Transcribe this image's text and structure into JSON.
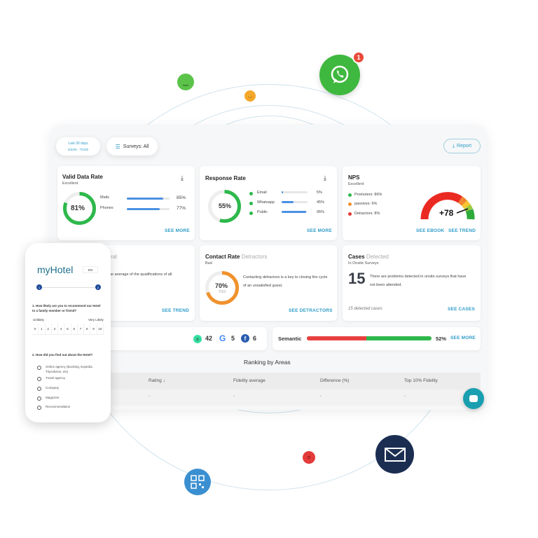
{
  "filters": {
    "date_label": "Last 30 days",
    "date_range": "6/2/25 - 7/2/25",
    "surveys": "Surveys: All",
    "report": "Report"
  },
  "valid_data_rate": {
    "title": "Valid Data Rate",
    "subtitle": "Excellent",
    "value": "81%",
    "percent": 81,
    "rows": [
      {
        "label": "Mails",
        "value": "85%",
        "percent": 85
      },
      {
        "label": "Phones",
        "value": "77%",
        "percent": 77
      }
    ],
    "link": "SEE MORE"
  },
  "response_rate": {
    "title": "Response Rate",
    "value": "55%",
    "percent": 55,
    "rows": [
      {
        "label": "Email",
        "value": "5%",
        "percent": 5
      },
      {
        "label": "Whatsapp",
        "value": "45%",
        "percent": 45
      },
      {
        "label": "Public",
        "value": "95%",
        "percent": 95
      }
    ],
    "link": "SEE MORE"
  },
  "nps": {
    "title": "NPS",
    "subtitle": "Excellent",
    "items": [
      {
        "label": "Promoters: 86%",
        "color": "#2eb84b"
      },
      {
        "label": "passives: 6%",
        "color": "#f0922e"
      },
      {
        "label": "Detractors: 8%",
        "color": "#e23a3a"
      }
    ],
    "score": "+78",
    "link_ebook": "SEE EBOOK",
    "link_trend": "SEE TREND"
  },
  "general": {
    "title_fragment": "ral",
    "text_fragment": "ne average of the qualifications of all",
    "link": "SEE TREND"
  },
  "contact_rate": {
    "title": "Contact Rate",
    "title_muted": "Detractors",
    "subtitle": "Bad",
    "value": "70%",
    "fraction": "7/10",
    "percent": 70,
    "text": "Contacting detractors is a key to closing the cycle of an unsatisfied guest.",
    "link": "SEE DETRACTORS"
  },
  "cases": {
    "title": "Cases",
    "title_muted": "Detected",
    "subtitle": "In Onsite Surveys",
    "count": "15",
    "text": "There are problems detected in onsite surveys that have not been attended.",
    "footer": "15 detected cases",
    "link": "SEE CASES"
  },
  "reviews": [
    {
      "icon": "tripadvisor-icon",
      "value": "42"
    },
    {
      "icon": "google-icon",
      "value": "5"
    },
    {
      "icon": "facebook-icon",
      "value": "6"
    }
  ],
  "semantic": {
    "label": "Semantic",
    "value": "52%",
    "percent": 52,
    "link": "SEE MORE"
  },
  "ranking": {
    "title": "Ranking by Areas",
    "columns": [
      "Rating",
      "Fidelity average",
      "Difference (%)",
      "Top 10% Fidelity"
    ],
    "row": [
      "-",
      "-",
      "-",
      "-"
    ]
  },
  "phone": {
    "brand": "myHotel",
    "lang": "EN",
    "steps": [
      "1",
      "2"
    ],
    "q1": "1. How likely are you to recommend our Hotel to a family member or friend?",
    "unlikely": "Unlikely",
    "very_likely": "Very Likely",
    "scale": [
      "0",
      "1",
      "2",
      "3",
      "4",
      "5",
      "6",
      "7",
      "8",
      "9",
      "10"
    ],
    "q2": "2. How did you find out about the Hotel?",
    "options": [
      "Online agency (Booking, Expedia, TripAdvisor, etc)",
      "Travel agency",
      "Company",
      "Magazine",
      "Recommendation"
    ]
  },
  "whatsapp_badge": "1",
  "colors": {
    "accent": "#2d9cc7",
    "green": "#2eb84b",
    "orange": "#f0922e",
    "red": "#e23a3a",
    "navy": "#1b2e52"
  }
}
